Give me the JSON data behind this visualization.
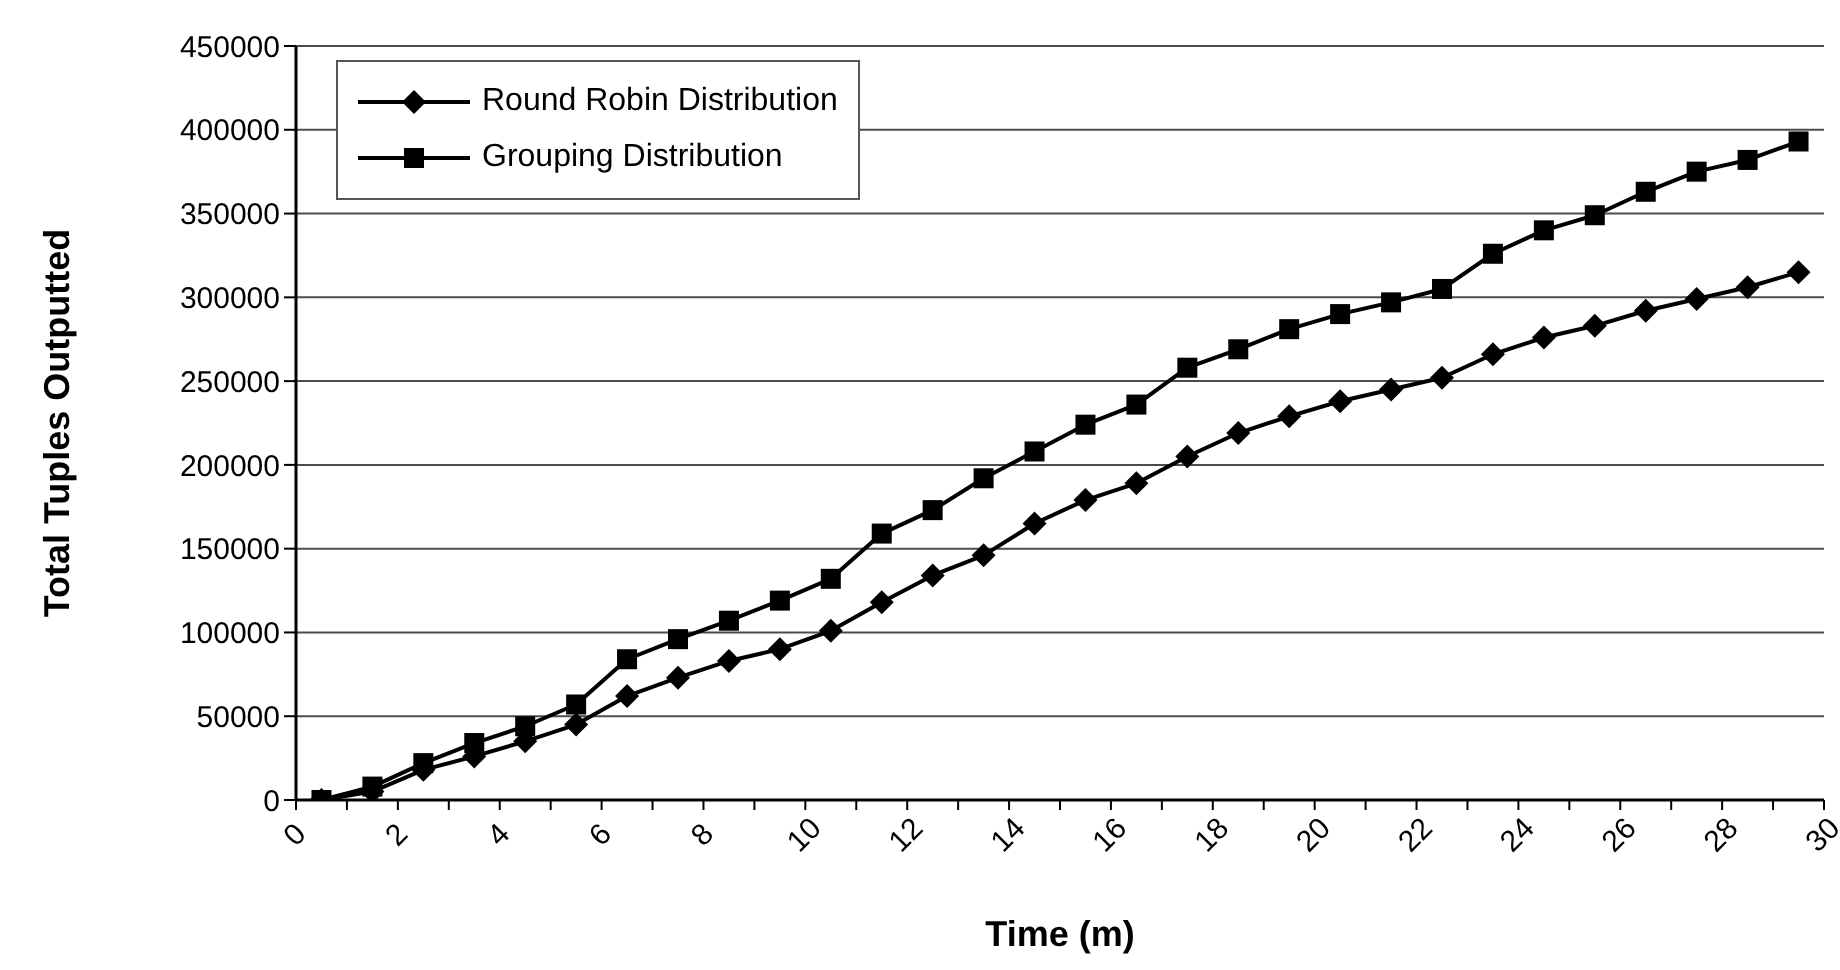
{
  "chart_data": {
    "type": "line",
    "xlabel": "Time (m)",
    "ylabel": "Total Tuples Outputted",
    "x": [
      0.5,
      1.5,
      2.5,
      3.5,
      4.5,
      5.5,
      6.5,
      7.5,
      8.5,
      9.5,
      10.5,
      11.5,
      12.5,
      13.5,
      14.5,
      15.5,
      16.5,
      17.5,
      18.5,
      19.5,
      20.5,
      21.5,
      22.5,
      23.5,
      24.5,
      25.5,
      26.5,
      27.5,
      28.5,
      29.5
    ],
    "series": [
      {
        "name": "Round Robin Distribution",
        "color": "#000000",
        "marker": "diamond",
        "values": [
          0,
          5000,
          18000,
          26000,
          35000,
          45000,
          62000,
          73000,
          83000,
          90000,
          101000,
          118000,
          134000,
          146000,
          165000,
          179000,
          189000,
          205000,
          219000,
          229000,
          238000,
          245000,
          252000,
          266000,
          276000,
          283000,
          292000,
          299000,
          306000,
          315000
        ]
      },
      {
        "name": "Grouping Distribution",
        "color": "#000000",
        "marker": "square",
        "values": [
          0,
          8000,
          22000,
          34000,
          44000,
          57000,
          84000,
          96000,
          107000,
          119000,
          132000,
          159000,
          173000,
          192000,
          208000,
          224000,
          236000,
          258000,
          269000,
          281000,
          290000,
          297000,
          305000,
          326000,
          340000,
          349000,
          363000,
          375000,
          382000,
          393000
        ]
      }
    ],
    "xlim": [
      0,
      30
    ],
    "xticks": [
      0,
      {
        "value": 1,
        "label": null
      },
      2,
      {
        "value": 3,
        "label": null
      },
      4,
      {
        "value": 5,
        "label": null
      },
      6,
      {
        "value": 7,
        "label": null
      },
      8,
      {
        "value": 9,
        "label": null
      },
      10,
      {
        "value": 11,
        "label": null
      },
      12,
      {
        "value": 13,
        "label": null
      },
      14,
      {
        "value": 15,
        "label": null
      },
      16,
      {
        "value": 17,
        "label": null
      },
      18,
      {
        "value": 19,
        "label": null
      },
      20,
      {
        "value": 21,
        "label": null
      },
      22,
      {
        "value": 23,
        "label": null
      },
      24,
      {
        "value": 25,
        "label": null
      },
      26,
      {
        "value": 27,
        "label": null
      },
      28,
      {
        "value": 29,
        "label": null
      },
      30
    ],
    "ylim": [
      0,
      450000
    ],
    "yticks": [
      0,
      50000,
      100000,
      150000,
      200000,
      250000,
      300000,
      350000,
      400000,
      450000
    ],
    "grid": "y",
    "legend": "top left",
    "line_style": "solid"
  }
}
